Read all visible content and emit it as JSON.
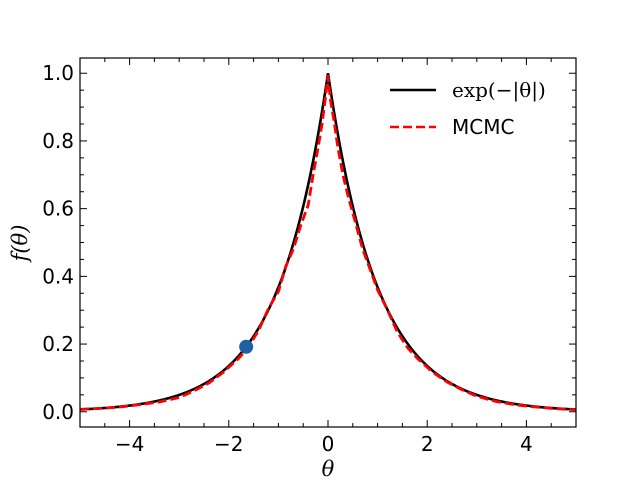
{
  "chart_data": {
    "type": "line",
    "title": "",
    "xlabel": "θ",
    "ylabel": "f(θ)",
    "xlim": [
      -5,
      5
    ],
    "ylim": [
      -0.045,
      1.045
    ],
    "x_ticks": [
      -4,
      -2,
      0,
      2,
      4
    ],
    "x_tick_labels": [
      "−4",
      "−2",
      "0",
      "2",
      "4"
    ],
    "y_ticks": [
      0.0,
      0.2,
      0.4,
      0.6,
      0.8,
      1.0
    ],
    "y_tick_labels": [
      "0.0",
      "0.2",
      "0.4",
      "0.6",
      "0.8",
      "1.0"
    ],
    "grid": false,
    "legend_position": "top-right",
    "series": [
      {
        "name": "exp(−|θ|)",
        "style": "solid",
        "color": "#000000",
        "function": "exp(-abs(x))",
        "x": [
          -5,
          -4,
          -3,
          -2,
          -1.5,
          -1,
          -0.5,
          -0.25,
          0,
          0.25,
          0.5,
          1,
          1.5,
          2,
          3,
          4,
          5
        ],
        "values": [
          0.007,
          0.018,
          0.05,
          0.135,
          0.223,
          0.368,
          0.607,
          0.779,
          1.0,
          0.779,
          0.607,
          0.368,
          0.223,
          0.135,
          0.05,
          0.018,
          0.007
        ]
      },
      {
        "name": "MCMC",
        "style": "dashed",
        "color": "#ff0000",
        "x": [
          -5.0,
          -4.6,
          -4.2,
          -3.8,
          -3.4,
          -3.0,
          -2.7,
          -2.4,
          -2.1,
          -1.8,
          -1.6,
          -1.4,
          -1.2,
          -1.0,
          -0.85,
          -0.7,
          -0.55,
          -0.4,
          -0.3,
          -0.2,
          -0.12,
          -0.05,
          0.0,
          0.05,
          0.12,
          0.2,
          0.3,
          0.4,
          0.55,
          0.7,
          0.85,
          1.0,
          1.2,
          1.4,
          1.6,
          1.8,
          2.1,
          2.4,
          2.7,
          3.0,
          3.4,
          3.8,
          4.2,
          4.6,
          5.0
        ],
        "values": [
          0.007,
          0.01,
          0.014,
          0.021,
          0.029,
          0.042,
          0.062,
          0.085,
          0.118,
          0.158,
          0.192,
          0.24,
          0.305,
          0.355,
          0.43,
          0.48,
          0.55,
          0.61,
          0.7,
          0.78,
          0.85,
          0.93,
          0.99,
          0.92,
          0.86,
          0.78,
          0.7,
          0.64,
          0.56,
          0.48,
          0.42,
          0.36,
          0.3,
          0.235,
          0.19,
          0.158,
          0.118,
          0.088,
          0.065,
          0.046,
          0.03,
          0.02,
          0.014,
          0.009,
          0.006
        ]
      }
    ],
    "markers": [
      {
        "x": -1.65,
        "y": 0.192,
        "color": "#1f5fa6"
      }
    ]
  }
}
